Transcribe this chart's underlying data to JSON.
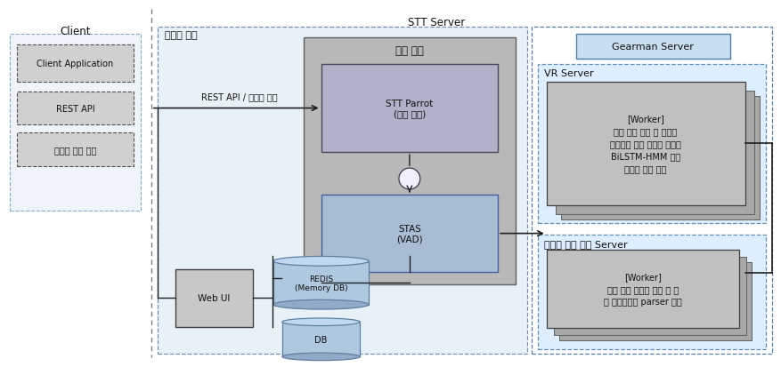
{
  "title": "STT Server",
  "bg_color": "#ffffff",
  "fig_width": 8.78,
  "fig_height": 4.14,
  "dpi": 100,
  "sections": {
    "client_label": "Client",
    "master_label": "마스터 서버",
    "relay_label": "중계 서버",
    "gearman_label": "Gearman Server",
    "vr_label": "VR Server",
    "dialog_label": "대화형 언어 인지 Server"
  },
  "colors": {
    "relay_fill": "#b8b8b8",
    "relay_border": "#606060",
    "stt_parrot_fill": "#b0b0c8",
    "stas_fill": "#a8bcd4",
    "worker_fill": "#c0c0c0",
    "worker_border": "#404040",
    "worker_shadow1": "#a8a8a8",
    "worker_shadow2": "#b0b0b0",
    "client_fill": "#d0d0d0",
    "client_border": "#505050",
    "client_box_fill": "#d8d8d8",
    "webui_fill": "#c8c8c8",
    "webui_border": "#404040",
    "gearman_fill": "#c8dff0",
    "gearman_border": "#5080a8",
    "vr_fill": "#ddeeff",
    "vr_border": "#6090b8",
    "dialog_fill": "#ddeeff",
    "dialog_border": "#6090b8",
    "master_fill": "#dde8f8",
    "master_border": "#7090b8",
    "db_fill": "#aec8e0",
    "db_fill_top": "#c0d8f0",
    "db_fill_bot": "#90aac8",
    "db_border": "#6080a0",
    "arrow_color": "#202020",
    "divider_color": "#808080",
    "text_color": "#101010"
  }
}
